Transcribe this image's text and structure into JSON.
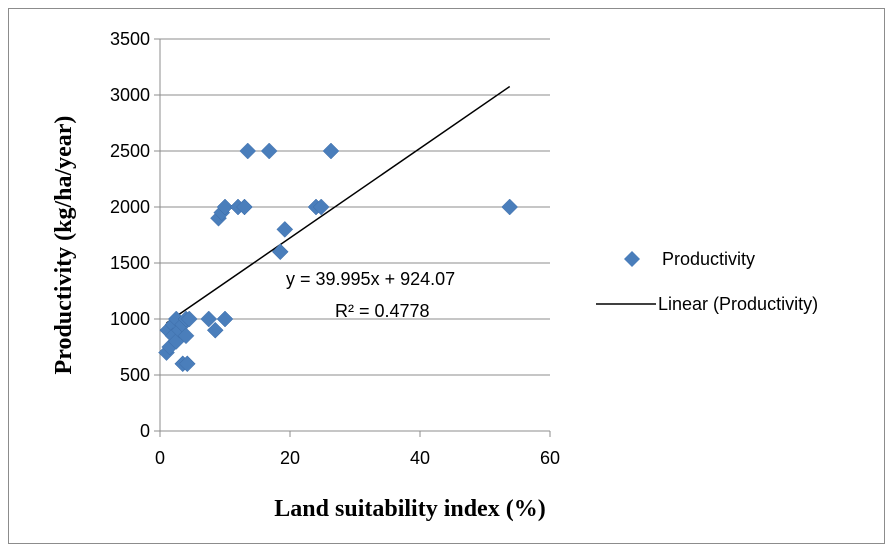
{
  "chart_data": {
    "type": "scatter",
    "xlabel": "Land suitability index (%)",
    "ylabel": "Productivity (kg/ha/year)",
    "xlim": [
      0,
      60
    ],
    "ylim": [
      0,
      3500
    ],
    "x_ticks": [
      "0",
      "20",
      "40",
      "60"
    ],
    "y_ticks": [
      "0",
      "500",
      "1000",
      "1500",
      "2000",
      "2500",
      "3000",
      "3500"
    ],
    "grid": "horizontal",
    "legend_position": "right",
    "series": [
      {
        "name": "Productivity",
        "color": "#4a7ebb",
        "marker": "diamond",
        "points": [
          {
            "x": 1.0,
            "y": 700
          },
          {
            "x": 1.5,
            "y": 750
          },
          {
            "x": 1.2,
            "y": 900
          },
          {
            "x": 2.0,
            "y": 950
          },
          {
            "x": 2.5,
            "y": 1000
          },
          {
            "x": 2.0,
            "y": 850
          },
          {
            "x": 2.5,
            "y": 800
          },
          {
            "x": 3.0,
            "y": 900
          },
          {
            "x": 3.5,
            "y": 950
          },
          {
            "x": 4.0,
            "y": 1000
          },
          {
            "x": 4.5,
            "y": 1000
          },
          {
            "x": 4.0,
            "y": 850
          },
          {
            "x": 3.5,
            "y": 600
          },
          {
            "x": 4.2,
            "y": 600
          },
          {
            "x": 7.5,
            "y": 1000
          },
          {
            "x": 8.5,
            "y": 900
          },
          {
            "x": 10.0,
            "y": 1000
          },
          {
            "x": 9.0,
            "y": 1900
          },
          {
            "x": 9.5,
            "y": 1950
          },
          {
            "x": 10.0,
            "y": 2000
          },
          {
            "x": 12.0,
            "y": 2000
          },
          {
            "x": 13.0,
            "y": 2000
          },
          {
            "x": 13.5,
            "y": 2500
          },
          {
            "x": 16.8,
            "y": 2500
          },
          {
            "x": 18.5,
            "y": 1600
          },
          {
            "x": 19.2,
            "y": 1800
          },
          {
            "x": 24.0,
            "y": 2000
          },
          {
            "x": 24.8,
            "y": 2000
          },
          {
            "x": 26.3,
            "y": 2500
          },
          {
            "x": 53.8,
            "y": 2000
          }
        ]
      },
      {
        "name": "Linear (Productivity)",
        "color": "#000000",
        "type": "trendline",
        "slope": 39.995,
        "intercept": 924.07,
        "x_range": [
          1.0,
          53.8
        ]
      }
    ],
    "annotations": [
      "y = 39.995x + 924.07",
      "R² = 0.4778"
    ]
  }
}
